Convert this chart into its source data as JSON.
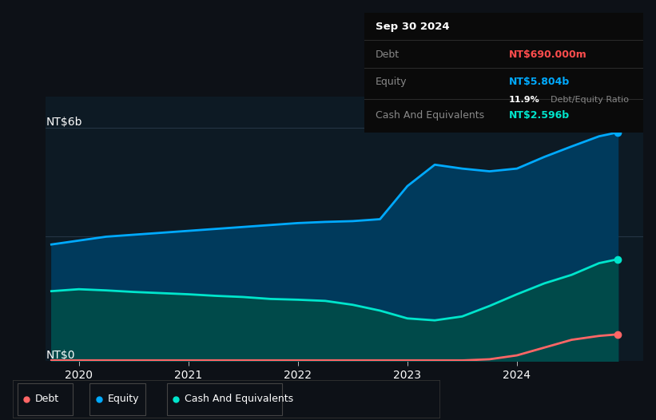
{
  "bg_color": "#0d1117",
  "plot_bg_color": "#0d1a24",
  "grid_color": "#1e2d3d",
  "tooltip": {
    "date": "Sep 30 2024",
    "debt_label": "Debt",
    "debt_value": "NT$690.000m",
    "debt_color": "#ff4d4d",
    "equity_label": "Equity",
    "equity_value": "NT$5.804b",
    "equity_color": "#00aaff",
    "ratio_value": "11.9%",
    "ratio_label": "Debt/Equity Ratio",
    "cash_label": "Cash And Equivalents",
    "cash_value": "NT$2.596b",
    "cash_color": "#00e5cc"
  },
  "ylabel_top": "NT$6b",
  "ylabel_bottom": "NT$0",
  "ylim": [
    0,
    6.8
  ],
  "xlim_start": 2019.7,
  "xlim_end": 2025.15,
  "xticks": [
    2020,
    2021,
    2022,
    2023,
    2024
  ],
  "equity_color": "#00aaff",
  "equity_fill": "#003a5c",
  "cash_color": "#00e5cc",
  "cash_fill": "#004a4a",
  "debt_color": "#ff6666",
  "line_width": 2.0,
  "years": [
    2019.75,
    2020.0,
    2020.25,
    2020.5,
    2020.75,
    2021.0,
    2021.25,
    2021.5,
    2021.75,
    2022.0,
    2022.25,
    2022.5,
    2022.75,
    2023.0,
    2023.25,
    2023.5,
    2023.75,
    2024.0,
    2024.25,
    2024.5,
    2024.75,
    2024.92
  ],
  "equity": [
    3.0,
    3.1,
    3.2,
    3.25,
    3.3,
    3.35,
    3.4,
    3.45,
    3.5,
    3.55,
    3.58,
    3.6,
    3.65,
    4.5,
    5.05,
    4.95,
    4.88,
    4.95,
    5.25,
    5.52,
    5.78,
    5.88
  ],
  "cash": [
    1.8,
    1.85,
    1.82,
    1.78,
    1.75,
    1.72,
    1.68,
    1.65,
    1.6,
    1.58,
    1.55,
    1.45,
    1.3,
    1.1,
    1.05,
    1.15,
    1.42,
    1.72,
    2.0,
    2.22,
    2.52,
    2.62
  ],
  "debt": [
    0.02,
    0.02,
    0.02,
    0.02,
    0.02,
    0.02,
    0.02,
    0.02,
    0.02,
    0.02,
    0.02,
    0.02,
    0.02,
    0.02,
    0.02,
    0.02,
    0.05,
    0.15,
    0.35,
    0.55,
    0.65,
    0.69
  ],
  "legend_items": [
    {
      "label": "Debt",
      "color": "#ff6666"
    },
    {
      "label": "Equity",
      "color": "#00aaff"
    },
    {
      "label": "Cash And Equivalents",
      "color": "#00e5cc"
    }
  ]
}
